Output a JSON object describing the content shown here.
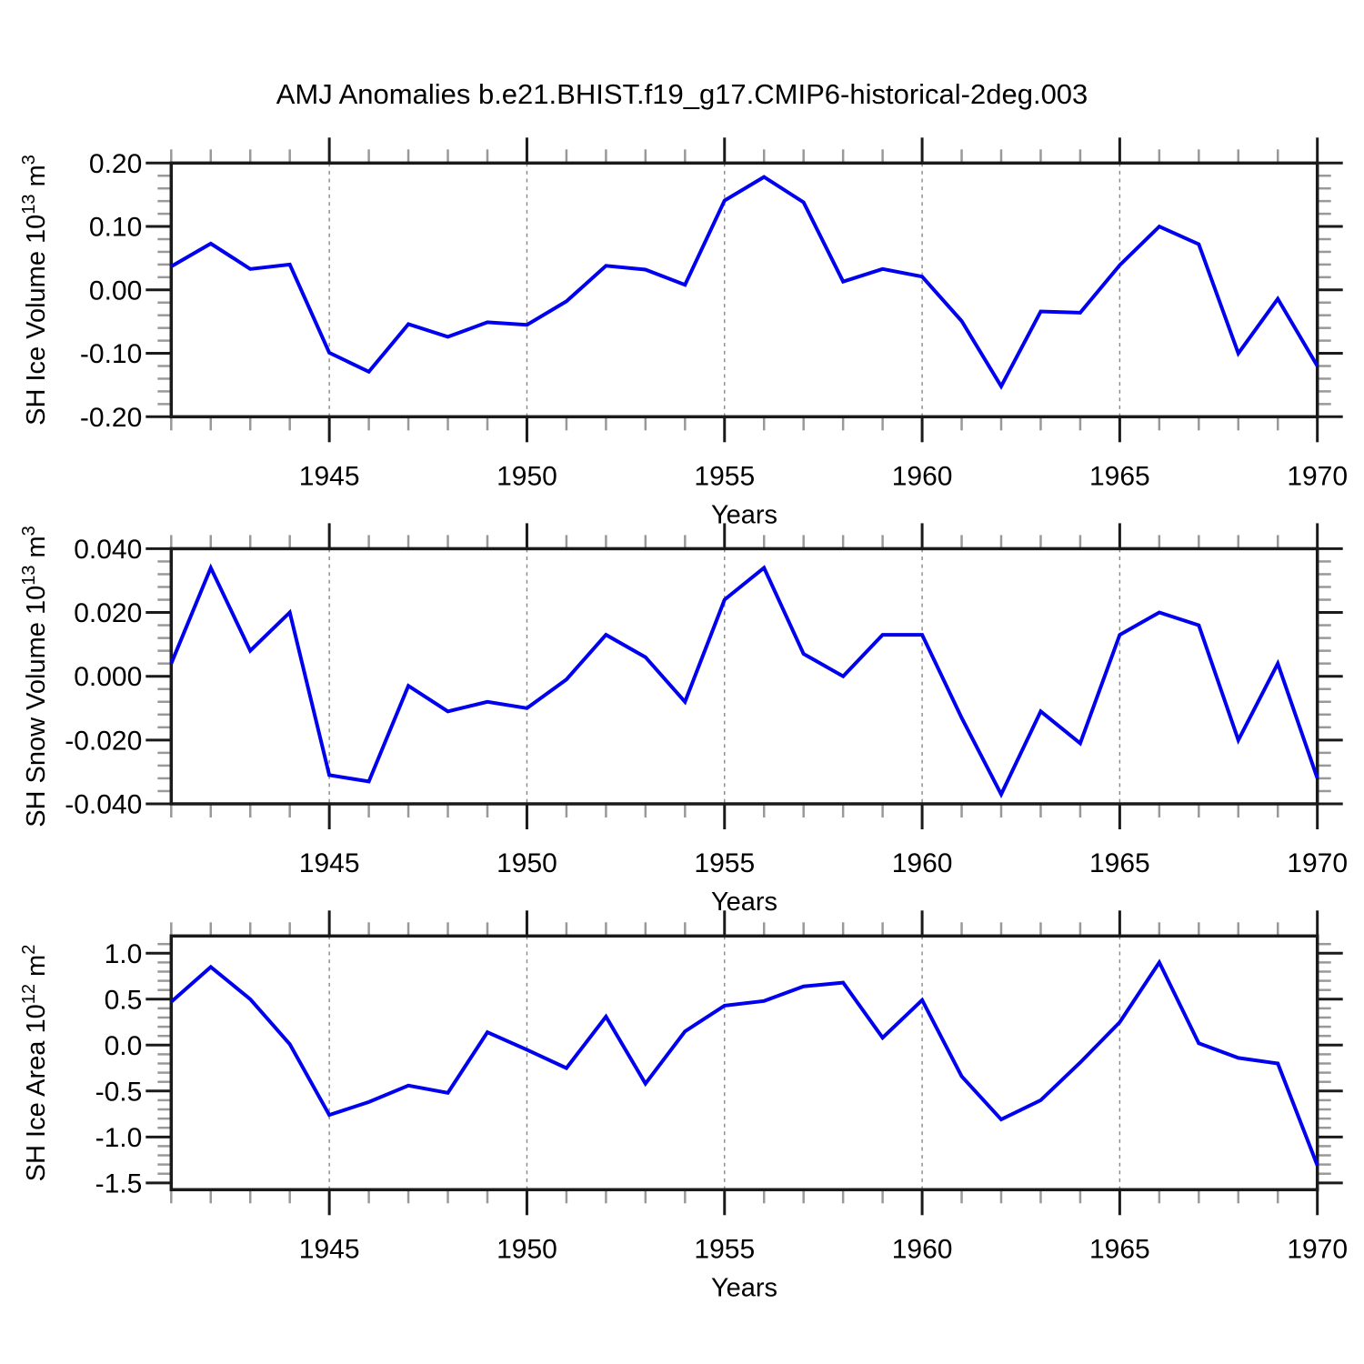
{
  "title": "AMJ Anomalies b.e21.BHIST.f19_g17.CMIP6-historical-2deg.003",
  "colors": {
    "line": "#0000ee",
    "frame": "#1a1a1a",
    "major_tick": "#1a1a1a",
    "minor_tick": "#999999",
    "grid": "#888888",
    "text": "#000000"
  },
  "chart_data": [
    {
      "type": "line",
      "name": "SH Ice Volume anomaly",
      "ylabel_parts": {
        "base": "SH Ice Volume 10",
        "exp": "13",
        "unit": " m",
        "unit_exp": "3"
      },
      "xlabel": "Years",
      "x": [
        1941,
        1942,
        1943,
        1944,
        1945,
        1946,
        1947,
        1948,
        1949,
        1950,
        1951,
        1952,
        1953,
        1954,
        1955,
        1956,
        1957,
        1958,
        1959,
        1960,
        1961,
        1962,
        1963,
        1964,
        1965,
        1966,
        1967,
        1968,
        1969,
        1970
      ],
      "values": [
        0.037,
        0.073,
        0.033,
        0.04,
        -0.099,
        -0.129,
        -0.054,
        -0.074,
        -0.051,
        -0.055,
        -0.018,
        0.038,
        0.032,
        0.008,
        0.141,
        0.178,
        0.138,
        0.013,
        0.033,
        0.021,
        -0.049,
        -0.152,
        -0.034,
        -0.036,
        0.039,
        0.1,
        0.072,
        -0.1,
        -0.014,
        -0.12
      ],
      "xlim": [
        1941,
        1970
      ],
      "ylim": [
        -0.2,
        0.2
      ],
      "yticks": [
        0.2,
        0.1,
        0.0,
        -0.1,
        -0.2
      ],
      "ytick_labels": [
        "0.20",
        "0.10",
        "0.00",
        "-0.10",
        "-0.20"
      ],
      "y_minor_step": 0.02,
      "xticks": [
        1945,
        1950,
        1955,
        1960,
        1965,
        1970
      ],
      "xtick_labels": [
        "1945",
        "1950",
        "1955",
        "1960",
        "1965",
        "1970"
      ],
      "x_minor_step": 1,
      "grid_x": [
        1945,
        1950,
        1955,
        1960,
        1965
      ],
      "grid_on": true
    },
    {
      "type": "line",
      "name": "SH Snow Volume anomaly",
      "ylabel_parts": {
        "base": "SH Snow Volume 10",
        "exp": "13",
        "unit": " m",
        "unit_exp": "3"
      },
      "xlabel": "Years",
      "x": [
        1941,
        1942,
        1943,
        1944,
        1945,
        1946,
        1947,
        1948,
        1949,
        1950,
        1951,
        1952,
        1953,
        1954,
        1955,
        1956,
        1957,
        1958,
        1959,
        1960,
        1961,
        1962,
        1963,
        1964,
        1965,
        1966,
        1967,
        1968,
        1969,
        1970
      ],
      "values": [
        0.004,
        0.034,
        0.008,
        0.02,
        -0.031,
        -0.033,
        -0.003,
        -0.011,
        -0.008,
        -0.01,
        -0.001,
        0.013,
        0.006,
        -0.008,
        0.024,
        0.034,
        0.007,
        0.0,
        0.013,
        0.013,
        -0.013,
        -0.037,
        -0.011,
        -0.021,
        0.013,
        0.02,
        0.016,
        -0.02,
        0.004,
        -0.032
      ],
      "xlim": [
        1941,
        1970
      ],
      "ylim": [
        -0.04,
        0.04
      ],
      "yticks": [
        0.04,
        0.02,
        0.0,
        -0.02,
        -0.04
      ],
      "ytick_labels": [
        "0.040",
        "0.020",
        "0.000",
        "-0.020",
        "-0.040"
      ],
      "y_minor_step": 0.004,
      "xticks": [
        1945,
        1950,
        1955,
        1960,
        1965,
        1970
      ],
      "xtick_labels": [
        "1945",
        "1950",
        "1955",
        "1960",
        "1965",
        "1970"
      ],
      "x_minor_step": 1,
      "grid_x": [
        1945,
        1950,
        1955,
        1960,
        1965
      ],
      "grid_on": true
    },
    {
      "type": "line",
      "name": "SH Ice Area anomaly",
      "ylabel_parts": {
        "base": "SH Ice Area 10",
        "exp": "12",
        "unit": " m",
        "unit_exp": "2"
      },
      "xlabel": "Years",
      "x": [
        1941,
        1942,
        1943,
        1944,
        1945,
        1946,
        1947,
        1948,
        1949,
        1950,
        1951,
        1952,
        1953,
        1954,
        1955,
        1956,
        1957,
        1958,
        1959,
        1960,
        1961,
        1962,
        1963,
        1964,
        1965,
        1966,
        1967,
        1968,
        1969,
        1970
      ],
      "values": [
        0.47,
        0.85,
        0.5,
        0.01,
        -0.76,
        -0.62,
        -0.44,
        -0.52,
        0.14,
        -0.05,
        -0.25,
        0.31,
        -0.42,
        0.15,
        0.43,
        0.48,
        0.64,
        0.68,
        0.08,
        0.49,
        -0.34,
        -0.81,
        -0.6,
        -0.19,
        0.25,
        0.9,
        0.02,
        -0.14,
        -0.2,
        -1.31
      ],
      "xlim": [
        1941,
        1970
      ],
      "ylim": [
        -1.574,
        1.188
      ],
      "yticks": [
        1.0,
        0.5,
        0.0,
        -0.5,
        -1.0,
        -1.5
      ],
      "ytick_labels": [
        "1.0",
        "0.5",
        "0.0",
        "-0.5",
        "-1.0",
        "-1.5"
      ],
      "y_minor_step": 0.1,
      "xticks": [
        1945,
        1950,
        1955,
        1960,
        1965,
        1970
      ],
      "xtick_labels": [
        "1945",
        "1950",
        "1955",
        "1960",
        "1965",
        "1970"
      ],
      "x_minor_step": 1,
      "grid_x": [
        1945,
        1950,
        1955,
        1960,
        1965
      ],
      "grid_on": true
    }
  ]
}
